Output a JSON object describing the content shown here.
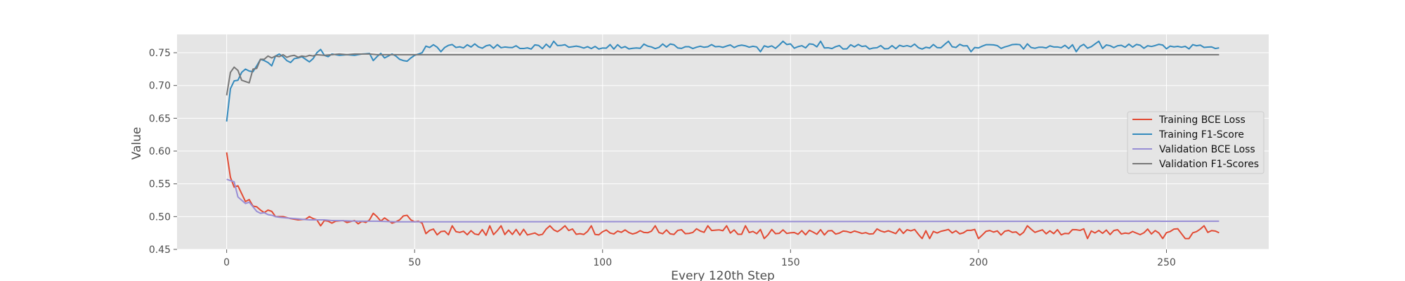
{
  "chart_data": {
    "type": "line",
    "title": "",
    "xlabel": "Every 120th Step",
    "ylabel": "Value",
    "xlim": [
      -13.2,
      277.2
    ],
    "ylim": [
      0.45,
      0.7779
    ],
    "xticks": [
      0,
      50,
      100,
      150,
      200,
      250
    ],
    "yticks": [
      0.45,
      0.5,
      0.55,
      0.6,
      0.65,
      0.7,
      0.75
    ],
    "grid": true,
    "legend_position": "center-right",
    "colors": {
      "background": "#e5e5e5",
      "grid": "#ffffff"
    },
    "series": [
      {
        "name": "Training BCE Loss",
        "color": "#e24a33",
        "anchors": [
          [
            0,
            0.598
          ],
          [
            1,
            0.56
          ],
          [
            2,
            0.545
          ],
          [
            3,
            0.547
          ],
          [
            4,
            0.535
          ],
          [
            5,
            0.523
          ],
          [
            6,
            0.526
          ],
          [
            7,
            0.516
          ],
          [
            8,
            0.515
          ],
          [
            9,
            0.51
          ],
          [
            10,
            0.506
          ],
          [
            11,
            0.51
          ],
          [
            12,
            0.508
          ],
          [
            13,
            0.5
          ],
          [
            15,
            0.5
          ],
          [
            17,
            0.497
          ],
          [
            19,
            0.495
          ],
          [
            21,
            0.496
          ],
          [
            22,
            0.5
          ],
          [
            23,
            0.497
          ],
          [
            24,
            0.495
          ],
          [
            25,
            0.486
          ],
          [
            26,
            0.494
          ],
          [
            27,
            0.493
          ],
          [
            28,
            0.49
          ],
          [
            29,
            0.493
          ],
          [
            31,
            0.494
          ],
          [
            32,
            0.491
          ],
          [
            34,
            0.494
          ],
          [
            35,
            0.489
          ],
          [
            36,
            0.493
          ],
          [
            37,
            0.491
          ],
          [
            38,
            0.495
          ],
          [
            39,
            0.505
          ],
          [
            40,
            0.5
          ],
          [
            41,
            0.493
          ],
          [
            42,
            0.498
          ],
          [
            43,
            0.494
          ],
          [
            44,
            0.49
          ],
          [
            45,
            0.492
          ],
          [
            46,
            0.495
          ],
          [
            47,
            0.501
          ],
          [
            48,
            0.502
          ],
          [
            49,
            0.495
          ],
          [
            50,
            0.492
          ],
          [
            51,
            0.493
          ],
          [
            52,
            0.49
          ],
          [
            53,
            0.474
          ],
          [
            54,
            0.479
          ]
        ],
        "tail": {
          "from": 55,
          "to": 264,
          "mean": 0.4765,
          "amplitude": 0.005,
          "min": 0.464,
          "max": 0.486
        }
      },
      {
        "name": "Training F1-Score",
        "color": "#348abd",
        "anchors": [
          [
            0,
            0.645
          ],
          [
            1,
            0.695
          ],
          [
            2,
            0.707
          ],
          [
            3,
            0.708
          ],
          [
            4,
            0.72
          ],
          [
            5,
            0.725
          ],
          [
            6,
            0.722
          ],
          [
            7,
            0.721
          ],
          [
            8,
            0.73
          ],
          [
            9,
            0.74
          ],
          [
            10,
            0.738
          ],
          [
            11,
            0.735
          ],
          [
            12,
            0.73
          ],
          [
            13,
            0.745
          ],
          [
            14,
            0.748
          ],
          [
            15,
            0.744
          ],
          [
            16,
            0.738
          ],
          [
            17,
            0.735
          ],
          [
            18,
            0.741
          ],
          [
            19,
            0.742
          ],
          [
            20,
            0.744
          ],
          [
            21,
            0.74
          ],
          [
            22,
            0.736
          ],
          [
            23,
            0.741
          ],
          [
            24,
            0.75
          ],
          [
            25,
            0.755
          ],
          [
            26,
            0.746
          ],
          [
            27,
            0.744
          ],
          [
            28,
            0.748
          ],
          [
            30,
            0.746
          ],
          [
            32,
            0.747
          ],
          [
            34,
            0.746
          ],
          [
            36,
            0.748
          ],
          [
            38,
            0.749
          ],
          [
            39,
            0.738
          ],
          [
            40,
            0.744
          ],
          [
            41,
            0.749
          ],
          [
            42,
            0.742
          ],
          [
            43,
            0.745
          ],
          [
            44,
            0.748
          ],
          [
            45,
            0.745
          ],
          [
            46,
            0.74
          ],
          [
            47,
            0.738
          ],
          [
            48,
            0.737
          ],
          [
            49,
            0.742
          ],
          [
            50,
            0.746
          ],
          [
            51,
            0.748
          ],
          [
            52,
            0.75
          ],
          [
            53,
            0.76
          ],
          [
            54,
            0.758
          ]
        ],
        "tail": {
          "from": 55,
          "to": 264,
          "mean": 0.7595,
          "amplitude": 0.004,
          "min": 0.748,
          "max": 0.768
        }
      },
      {
        "name": "Validation BCE Loss",
        "color": "#988ed5",
        "anchors": [
          [
            0,
            0.557
          ],
          [
            1,
            0.555
          ],
          [
            2,
            0.553
          ],
          [
            3,
            0.53
          ],
          [
            4,
            0.525
          ],
          [
            5,
            0.52
          ],
          [
            6,
            0.522
          ],
          [
            7,
            0.515
          ],
          [
            8,
            0.508
          ],
          [
            9,
            0.505
          ],
          [
            10,
            0.506
          ],
          [
            11,
            0.503
          ],
          [
            12,
            0.502
          ],
          [
            13,
            0.5
          ],
          [
            14,
            0.499
          ],
          [
            16,
            0.498
          ],
          [
            18,
            0.497
          ],
          [
            20,
            0.496
          ],
          [
            22,
            0.495
          ],
          [
            24,
            0.495
          ],
          [
            26,
            0.495
          ],
          [
            28,
            0.494
          ],
          [
            30,
            0.494
          ],
          [
            35,
            0.493
          ],
          [
            40,
            0.493
          ],
          [
            45,
            0.492
          ],
          [
            264,
            0.493
          ]
        ]
      },
      {
        "name": "Validation F1-Scores",
        "color": "#777777",
        "anchors": [
          [
            0,
            0.685
          ],
          [
            1,
            0.72
          ],
          [
            2,
            0.728
          ],
          [
            3,
            0.723
          ],
          [
            4,
            0.708
          ],
          [
            5,
            0.706
          ],
          [
            6,
            0.704
          ],
          [
            7,
            0.725
          ],
          [
            8,
            0.726
          ],
          [
            9,
            0.74
          ],
          [
            10,
            0.74
          ],
          [
            11,
            0.745
          ],
          [
            12,
            0.742
          ],
          [
            13,
            0.745
          ],
          [
            14,
            0.744
          ],
          [
            15,
            0.747
          ],
          [
            16,
            0.743
          ],
          [
            17,
            0.745
          ],
          [
            18,
            0.746
          ],
          [
            19,
            0.743
          ],
          [
            20,
            0.745
          ],
          [
            21,
            0.744
          ],
          [
            22,
            0.746
          ],
          [
            23,
            0.745
          ],
          [
            24,
            0.747
          ],
          [
            26,
            0.746
          ],
          [
            28,
            0.747
          ],
          [
            30,
            0.748
          ],
          [
            32,
            0.747
          ],
          [
            34,
            0.748
          ],
          [
            36,
            0.748
          ],
          [
            38,
            0.748
          ],
          [
            40,
            0.747
          ],
          [
            264,
            0.747
          ]
        ]
      }
    ]
  }
}
